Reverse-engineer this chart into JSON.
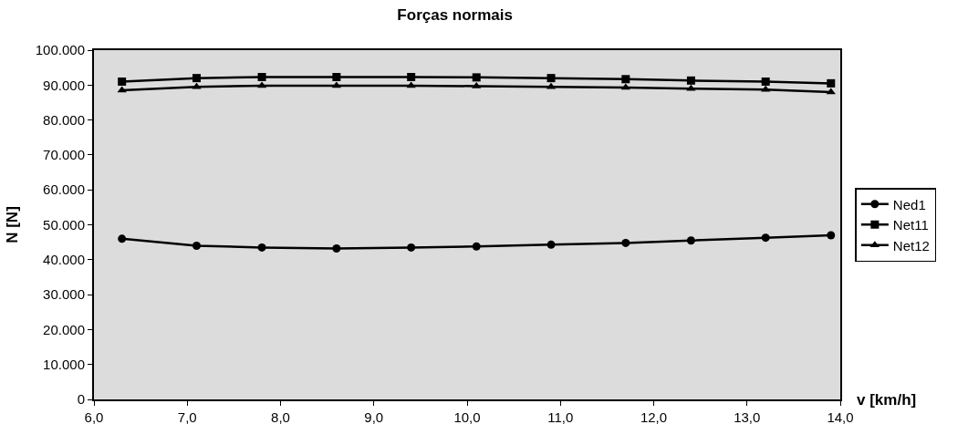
{
  "chart_data": {
    "type": "line",
    "title": "Forças normais",
    "xlabel": "v [km/h]",
    "ylabel": "N [N]",
    "x": [
      6.3,
      7.1,
      7.8,
      8.6,
      9.4,
      10.1,
      10.9,
      11.7,
      12.4,
      13.2,
      13.9
    ],
    "series": [
      {
        "name": "Ned1",
        "color": "#000000",
        "marker": "circle",
        "values": [
          46000,
          44000,
          43500,
          43200,
          43500,
          43800,
          44300,
          44800,
          45500,
          46300,
          47000
        ]
      },
      {
        "name": "Net11",
        "color": "#000000",
        "marker": "square",
        "values": [
          91000,
          92000,
          92300,
          92300,
          92300,
          92200,
          92000,
          91700,
          91300,
          91000,
          90500
        ]
      },
      {
        "name": "Net12",
        "color": "#000000",
        "marker": "triangle",
        "values": [
          88500,
          89500,
          89800,
          89800,
          89800,
          89700,
          89500,
          89300,
          89000,
          88700,
          88000
        ]
      }
    ],
    "xlim": [
      6.0,
      14.0
    ],
    "xticks": [
      {
        "value": 6,
        "label": "6,0"
      },
      {
        "value": 7,
        "label": "7,0"
      },
      {
        "value": 8,
        "label": "8,0"
      },
      {
        "value": 9,
        "label": "9,0"
      },
      {
        "value": 10,
        "label": "10,0"
      },
      {
        "value": 11,
        "label": "11,0"
      },
      {
        "value": 12,
        "label": "12,0"
      },
      {
        "value": 13,
        "label": "13,0"
      },
      {
        "value": 14,
        "label": "14,0"
      }
    ],
    "ylim": [
      0,
      100000
    ],
    "yticks": [
      0,
      {
        "value": 10000,
        "label": "10.000"
      },
      {
        "value": 20000,
        "label": "20.000"
      },
      {
        "value": 30000,
        "label": "30.000"
      },
      {
        "value": 40000,
        "label": "40.000"
      },
      {
        "value": 50000,
        "label": "50.000"
      },
      {
        "value": 60000,
        "label": "60.000"
      },
      {
        "value": 70000,
        "label": "70.000"
      },
      {
        "value": 80000,
        "label": "80.000"
      },
      {
        "value": 90000,
        "label": "90.000"
      },
      {
        "value": 100000,
        "label": "100.000"
      }
    ],
    "grid": false,
    "legend": "right",
    "line_style": "solid"
  }
}
